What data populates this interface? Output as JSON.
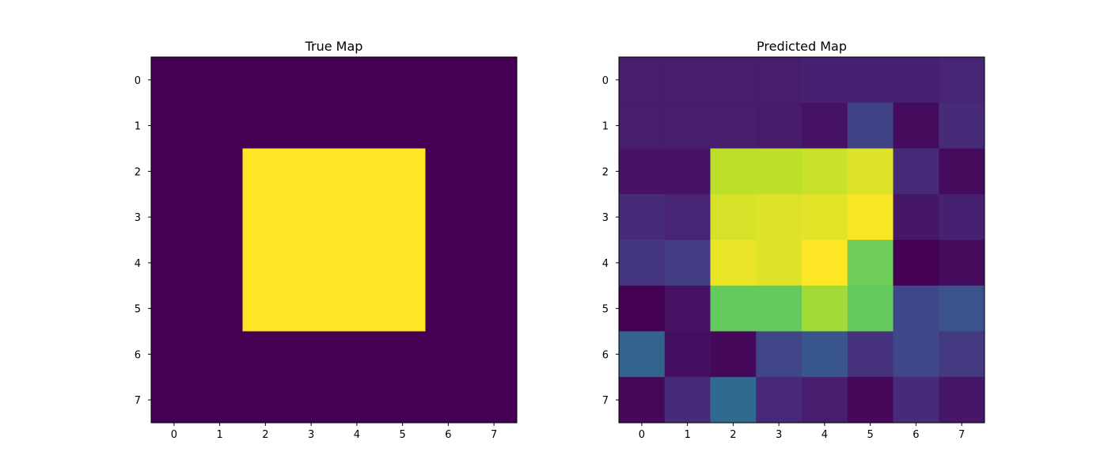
{
  "chart_data": [
    {
      "type": "heatmap",
      "title": "True Map",
      "xlabel": "",
      "ylabel": "",
      "x_ticks": [
        "0",
        "1",
        "2",
        "3",
        "4",
        "5",
        "6",
        "7"
      ],
      "y_ticks": [
        "0",
        "1",
        "2",
        "3",
        "4",
        "5",
        "6",
        "7"
      ],
      "colormap": "viridis",
      "vmin": 0,
      "vmax": 1,
      "grid": false,
      "values": [
        [
          0,
          0,
          0,
          0,
          0,
          0,
          0,
          0
        ],
        [
          0,
          0,
          0,
          0,
          0,
          0,
          0,
          0
        ],
        [
          0,
          0,
          1,
          1,
          1,
          1,
          0,
          0
        ],
        [
          0,
          0,
          1,
          1,
          1,
          1,
          0,
          0
        ],
        [
          0,
          0,
          1,
          1,
          1,
          1,
          0,
          0
        ],
        [
          0,
          0,
          1,
          1,
          1,
          1,
          0,
          0
        ],
        [
          0,
          0,
          0,
          0,
          0,
          0,
          0,
          0
        ],
        [
          0,
          0,
          0,
          0,
          0,
          0,
          0,
          0
        ]
      ]
    },
    {
      "type": "heatmap",
      "title": "Predicted Map",
      "xlabel": "",
      "ylabel": "",
      "x_ticks": [
        "0",
        "1",
        "2",
        "3",
        "4",
        "5",
        "6",
        "7"
      ],
      "y_ticks": [
        "0",
        "1",
        "2",
        "3",
        "4",
        "5",
        "6",
        "7"
      ],
      "colormap": "viridis",
      "vmin": 0,
      "vmax": 1,
      "grid": false,
      "values": [
        [
          0.08,
          0.08,
          0.08,
          0.08,
          0.09,
          0.09,
          0.09,
          0.1
        ],
        [
          0.08,
          0.08,
          0.08,
          0.07,
          0.05,
          0.2,
          0.03,
          0.12
        ],
        [
          0.05,
          0.05,
          0.9,
          0.9,
          0.92,
          0.95,
          0.12,
          0.03
        ],
        [
          0.12,
          0.1,
          0.94,
          0.95,
          0.96,
          0.99,
          0.06,
          0.09
        ],
        [
          0.16,
          0.18,
          0.97,
          0.95,
          1.0,
          0.78,
          0.0,
          0.03
        ],
        [
          0.0,
          0.05,
          0.76,
          0.76,
          0.86,
          0.76,
          0.22,
          0.26
        ],
        [
          0.32,
          0.04,
          0.02,
          0.21,
          0.27,
          0.14,
          0.22,
          0.17
        ],
        [
          0.02,
          0.12,
          0.34,
          0.11,
          0.08,
          0.02,
          0.12,
          0.06
        ]
      ]
    }
  ],
  "colors": {
    "viridis_stops": [
      "#440154",
      "#482878",
      "#3e4989",
      "#31688e",
      "#26828e",
      "#1f9e89",
      "#35b779",
      "#6ece58",
      "#b5de2b",
      "#fde725"
    ]
  }
}
